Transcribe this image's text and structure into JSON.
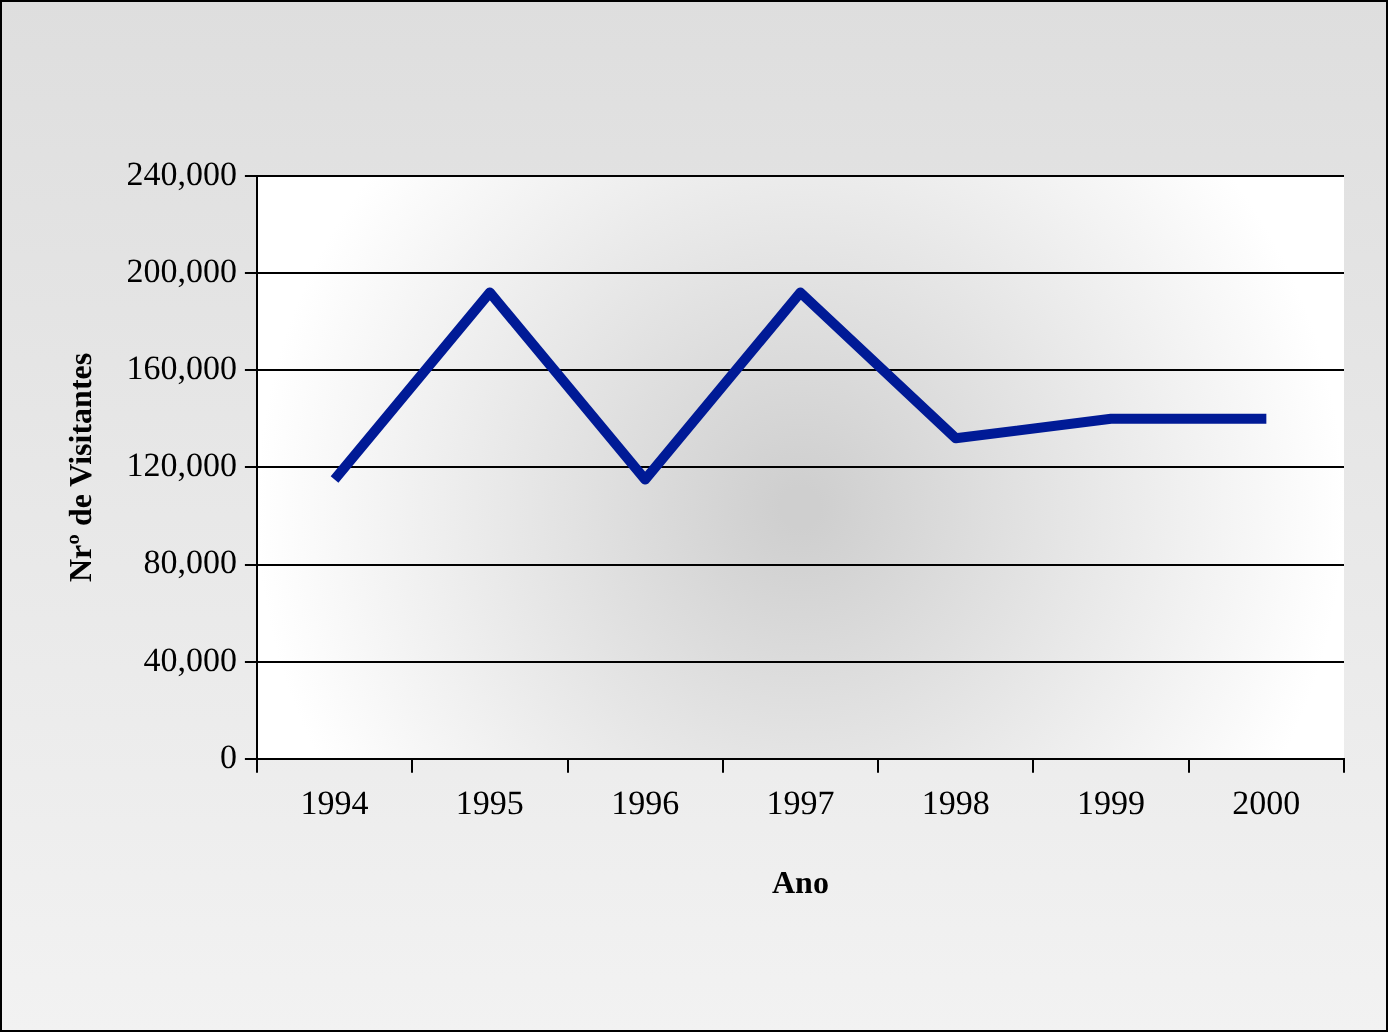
{
  "chart_data": {
    "type": "line",
    "xlabel": "Ano",
    "ylabel": "Nrº de Visitantes",
    "categories": [
      "1994",
      "1995",
      "1996",
      "1997",
      "1998",
      "1999",
      "2000"
    ],
    "series": [
      {
        "color": "#001a96",
        "values": [
          115000,
          192000,
          115000,
          192000,
          132000,
          140000,
          140000
        ]
      }
    ],
    "ylim": [
      0,
      240000
    ],
    "yticks": [
      {
        "value": 0,
        "label": "0"
      },
      {
        "value": 40000,
        "label": "40,000"
      },
      {
        "value": 80000,
        "label": "80,000"
      },
      {
        "value": 120000,
        "label": "120,000"
      },
      {
        "value": 160000,
        "label": "160,000"
      },
      {
        "value": 200000,
        "label": "200,000"
      },
      {
        "value": 240000,
        "label": "240,000"
      }
    ],
    "grid": "y",
    "legend": false,
    "marker": "none",
    "line_style": "solid"
  }
}
